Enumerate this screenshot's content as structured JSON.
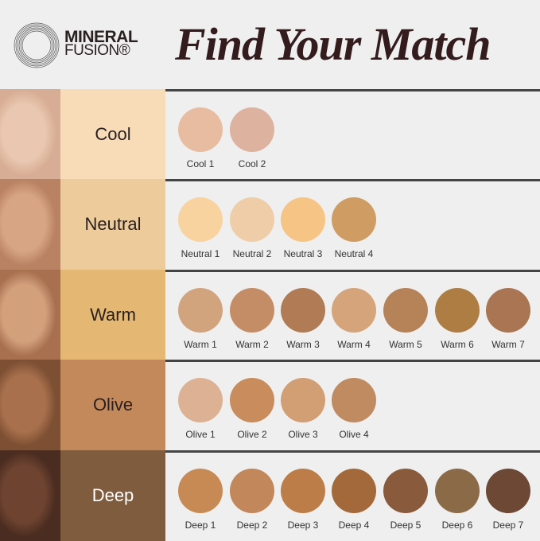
{
  "brand": {
    "line1": "MINERAL",
    "line2": "FUSION®"
  },
  "title": "Find Your Match",
  "rows": [
    {
      "tone": "Cool",
      "tone_bg": "#f8dcb8",
      "tone_text": "#2a2022",
      "face": [
        "#e9c7b0",
        "#d8ad95",
        "#8a8f96"
      ],
      "shades": [
        {
          "name": "Cool 1",
          "color": "#e8bca0"
        },
        {
          "name": "Cool 2",
          "color": "#ddb29f"
        }
      ]
    },
    {
      "tone": "Neutral",
      "tone_bg": "#eecb9b",
      "tone_text": "#2a2022",
      "face": [
        "#d7a584",
        "#b98263",
        "#3a2a22"
      ],
      "shades": [
        {
          "name": "Neutral 1",
          "color": "#f8d3a0"
        },
        {
          "name": "Neutral 2",
          "color": "#efcda8"
        },
        {
          "name": "Neutral 3",
          "color": "#f6c585"
        },
        {
          "name": "Neutral 4",
          "color": "#cf9d64"
        }
      ]
    },
    {
      "tone": "Warm",
      "tone_bg": "#e4b872",
      "tone_text": "#2a2022",
      "face": [
        "#d3a07c",
        "#a8704f",
        "#2b1e18"
      ],
      "shades": [
        {
          "name": "Warm 1",
          "color": "#d2a47e"
        },
        {
          "name": "Warm 2",
          "color": "#c58d66"
        },
        {
          "name": "Warm 3",
          "color": "#b07b55"
        },
        {
          "name": "Warm 4",
          "color": "#d5a47a"
        },
        {
          "name": "Warm 5",
          "color": "#b68258"
        },
        {
          "name": "Warm 6",
          "color": "#ae7d43"
        },
        {
          "name": "Warm 7",
          "color": "#a97553"
        }
      ]
    },
    {
      "tone": "Olive",
      "tone_bg": "#c4895a",
      "tone_text": "#2a2022",
      "face": [
        "#a8704c",
        "#7d4f33",
        "#2a1c15"
      ],
      "shades": [
        {
          "name": "Olive 1",
          "color": "#ddb193"
        },
        {
          "name": "Olive 2",
          "color": "#c98c5c"
        },
        {
          "name": "Olive 3",
          "color": "#d29e74"
        },
        {
          "name": "Olive 4",
          "color": "#c08b61"
        }
      ]
    },
    {
      "tone": "Deep",
      "tone_bg": "#7f5c3e",
      "tone_text": "#ffffff",
      "face": [
        "#6e4330",
        "#4a2c20",
        "#c9b89e"
      ],
      "shades": [
        {
          "name": "Deep 1",
          "color": "#c88a55"
        },
        {
          "name": "Deep 2",
          "color": "#c2875a"
        },
        {
          "name": "Deep 3",
          "color": "#bd7d48"
        },
        {
          "name": "Deep 4",
          "color": "#a4693a"
        },
        {
          "name": "Deep 5",
          "color": "#8a5a3c"
        },
        {
          "name": "Deep 6",
          "color": "#8a6a47"
        },
        {
          "name": "Deep 7",
          "color": "#6d4835"
        }
      ]
    }
  ]
}
